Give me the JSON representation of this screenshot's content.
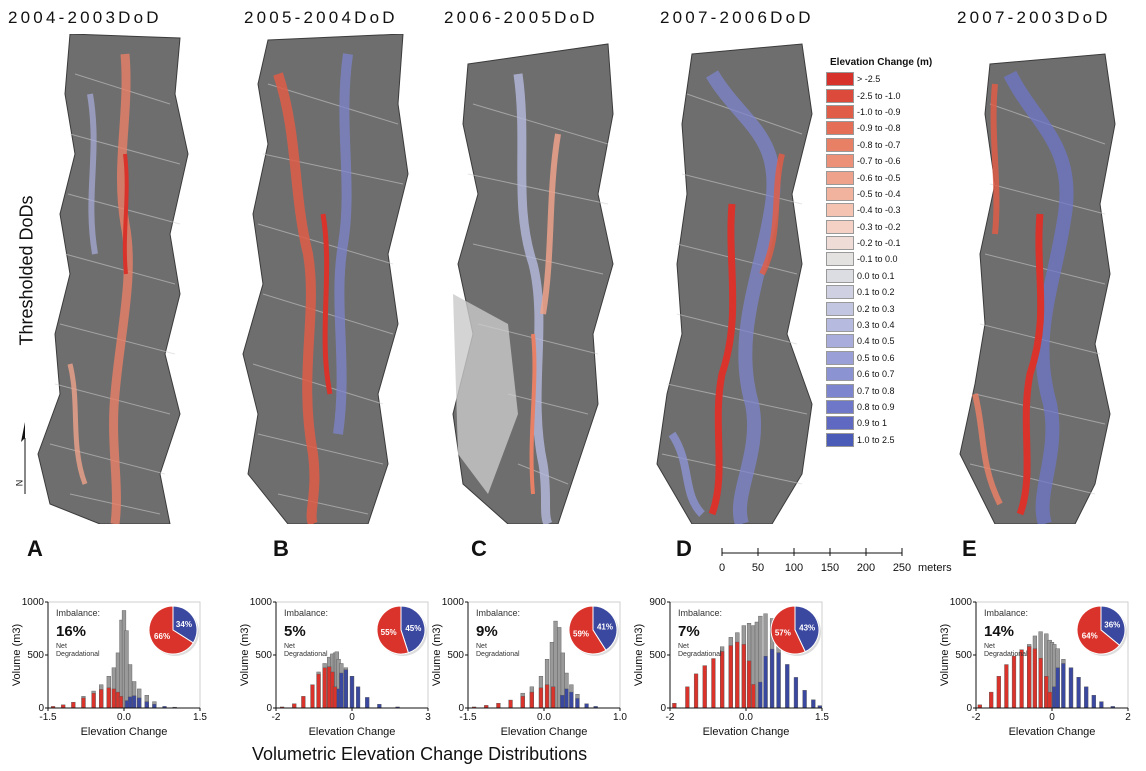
{
  "figure": {
    "row_label": "Thresholded DoDs",
    "bottom_caption": "Volumetric Elevation Change Distributions",
    "north_label": "N"
  },
  "colors": {
    "hillshade": "#6e6e6e",
    "erosion": "#d9332b",
    "deposition": "#3b48a0",
    "hist_gray": "#9a9a9a"
  },
  "panels": [
    {
      "letter": "A",
      "title": "2004-2003DoD"
    },
    {
      "letter": "B",
      "title": "2005-2004DoD"
    },
    {
      "letter": "C",
      "title": "2006-2005DoD"
    },
    {
      "letter": "D",
      "title": "2007-2006DoD"
    },
    {
      "letter": "E",
      "title": "2007-2003DoD"
    }
  ],
  "legend": {
    "title": "Elevation Change (m)",
    "items": [
      {
        "label": "> -2.5",
        "color": "#d7312b"
      },
      {
        "label": "-2.5 to -1.0",
        "color": "#dc4a3c"
      },
      {
        "label": "-1.0 to -0.9",
        "color": "#e05d48"
      },
      {
        "label": "-0.9 to -0.8",
        "color": "#e46f56"
      },
      {
        "label": "-0.8 to -0.7",
        "color": "#e88066"
      },
      {
        "label": "-0.7 to -0.6",
        "color": "#ec9178"
      },
      {
        "label": "-0.6 to -0.5",
        "color": "#efa28b"
      },
      {
        "label": "-0.5 to -0.4",
        "color": "#f2b39e"
      },
      {
        "label": "-0.4 to -0.3",
        "color": "#f4c3b2"
      },
      {
        "label": "-0.3 to -0.2",
        "color": "#f5d1c5"
      },
      {
        "label": "-0.2 to -0.1",
        "color": "#f0dcd6"
      },
      {
        "label": "-0.1 to 0.0",
        "color": "#e4e1e1"
      },
      {
        "label": "0.0 to 0.1",
        "color": "#dcdde3"
      },
      {
        "label": "0.1 to 0.2",
        "color": "#cfd1e2"
      },
      {
        "label": "0.2 to 0.3",
        "color": "#c2c6e0"
      },
      {
        "label": "0.3 to 0.4",
        "color": "#b5bade"
      },
      {
        "label": "0.4 to 0.5",
        "color": "#a8addb"
      },
      {
        "label": "0.5 to 0.6",
        "color": "#9aa0d7"
      },
      {
        "label": "0.6 to 0.7",
        "color": "#8c93d3"
      },
      {
        "label": "0.7 to 0.8",
        "color": "#7d85ce"
      },
      {
        "label": "0.8 to 0.9",
        "color": "#6e77c8"
      },
      {
        "label": "0.9 to 1",
        "color": "#5f69c1"
      },
      {
        "label": "1.0 to 2.5",
        "color": "#4b5cb8"
      }
    ]
  },
  "scale_bar": {
    "ticks": [
      "0",
      "50",
      "100",
      "150",
      "200",
      "250"
    ],
    "unit": "meters"
  },
  "chart_data": [
    {
      "type": "bar",
      "panel": "A",
      "xlabel": "Elevation Change",
      "ylabel": "Volume (m3)",
      "xlim": [
        -1.5,
        1.5
      ],
      "ylim": [
        0,
        1000
      ],
      "xticks": [
        "-1.5",
        "0.0",
        "1.5"
      ],
      "yticks": [
        "0",
        "500",
        "1000"
      ],
      "imbalance_label": "Imbalance:",
      "imbalance": "16%",
      "net": "Net\nDegradational",
      "pie": [
        {
          "name": "erosion",
          "percent": 66,
          "label": "66%"
        },
        {
          "name": "deposition",
          "percent": 34,
          "label": "34%"
        }
      ],
      "erosion": [
        [
          -1.4,
          15
        ],
        [
          -1.2,
          30
        ],
        [
          -1.0,
          55
        ],
        [
          -0.8,
          95
        ],
        [
          -0.6,
          140
        ],
        [
          -0.45,
          175
        ],
        [
          -0.3,
          190
        ],
        [
          -0.2,
          180
        ],
        [
          -0.12,
          150
        ],
        [
          -0.06,
          110
        ]
      ],
      "deposition": [
        [
          0.06,
          70
        ],
        [
          0.12,
          105
        ],
        [
          0.2,
          115
        ],
        [
          0.3,
          95
        ],
        [
          0.45,
          60
        ],
        [
          0.6,
          35
        ],
        [
          0.8,
          15
        ],
        [
          1.0,
          8
        ]
      ],
      "gray": [
        [
          -0.8,
          110
        ],
        [
          -0.6,
          160
        ],
        [
          -0.45,
          220
        ],
        [
          -0.3,
          300
        ],
        [
          -0.2,
          380
        ],
        [
          -0.12,
          520
        ],
        [
          -0.05,
          830
        ],
        [
          0.0,
          920
        ],
        [
          0.05,
          730
        ],
        [
          0.12,
          410
        ],
        [
          0.2,
          250
        ],
        [
          0.3,
          180
        ],
        [
          0.45,
          120
        ],
        [
          0.6,
          60
        ]
      ]
    },
    {
      "type": "bar",
      "panel": "B",
      "xlabel": "Elevation Change",
      "ylabel": "Volume (m3)",
      "xlim": [
        -2,
        3
      ],
      "ylim": [
        0,
        1000
      ],
      "xticks": [
        "-2",
        "0",
        "3"
      ],
      "yticks": [
        "0",
        "500",
        "1000"
      ],
      "imbalance_label": "Imbalance:",
      "imbalance": "5%",
      "net": "Net\nDegradational",
      "pie": [
        {
          "name": "erosion",
          "percent": 55,
          "label": "55%"
        },
        {
          "name": "deposition",
          "percent": 45,
          "label": "45%"
        }
      ],
      "erosion": [
        [
          -1.8,
          10
        ],
        [
          -1.4,
          40
        ],
        [
          -1.1,
          110
        ],
        [
          -0.8,
          220
        ],
        [
          -0.6,
          320
        ],
        [
          -0.4,
          380
        ],
        [
          -0.25,
          390
        ],
        [
          -0.15,
          340
        ],
        [
          -0.06,
          200
        ]
      ],
      "deposition": [
        [
          0.06,
          180
        ],
        [
          0.15,
          330
        ],
        [
          0.3,
          360
        ],
        [
          0.5,
          300
        ],
        [
          0.7,
          200
        ],
        [
          1.0,
          100
        ],
        [
          1.4,
          35
        ],
        [
          2.0,
          10
        ]
      ],
      "gray": [
        [
          -0.6,
          340
        ],
        [
          -0.4,
          420
        ],
        [
          -0.25,
          480
        ],
        [
          -0.15,
          510
        ],
        [
          -0.06,
          520
        ],
        [
          0.0,
          530
        ],
        [
          0.06,
          460
        ],
        [
          0.15,
          420
        ],
        [
          0.3,
          380
        ],
        [
          0.5,
          300
        ]
      ]
    },
    {
      "type": "bar",
      "panel": "C",
      "xlabel": "Elevation Change",
      "ylabel": "Volume (m3)",
      "xlim": [
        -1.5,
        1.0
      ],
      "ylim": [
        0,
        1000
      ],
      "xticks": [
        "-1.5",
        "0.0",
        "1.0"
      ],
      "yticks": [
        "0",
        "500",
        "1000"
      ],
      "imbalance_label": "Imbalance:",
      "imbalance": "9%",
      "net": "Net\nDegradational",
      "pie": [
        {
          "name": "erosion",
          "percent": 59,
          "label": "59%"
        },
        {
          "name": "deposition",
          "percent": 41,
          "label": "41%"
        }
      ],
      "erosion": [
        [
          -1.4,
          10
        ],
        [
          -1.2,
          25
        ],
        [
          -1.0,
          45
        ],
        [
          -0.8,
          75
        ],
        [
          -0.6,
          110
        ],
        [
          -0.45,
          150
        ],
        [
          -0.3,
          190
        ],
        [
          -0.2,
          220
        ],
        [
          -0.1,
          200
        ]
      ],
      "deposition": [
        [
          0.05,
          120
        ],
        [
          0.12,
          180
        ],
        [
          0.2,
          150
        ],
        [
          0.3,
          90
        ],
        [
          0.45,
          40
        ],
        [
          0.6,
          15
        ]
      ],
      "gray": [
        [
          -0.6,
          140
        ],
        [
          -0.45,
          200
        ],
        [
          -0.3,
          300
        ],
        [
          -0.2,
          460
        ],
        [
          -0.12,
          620
        ],
        [
          -0.06,
          820
        ],
        [
          0.0,
          760
        ],
        [
          0.06,
          520
        ],
        [
          0.12,
          330
        ],
        [
          0.2,
          220
        ],
        [
          0.3,
          130
        ]
      ]
    },
    {
      "type": "bar",
      "panel": "D",
      "xlabel": "Elevation Change",
      "ylabel": "Volume (m3)",
      "xlim": [
        -2,
        1.5
      ],
      "ylim": [
        0,
        900
      ],
      "xticks": [
        "-2",
        "0.0",
        "1.5"
      ],
      "yticks": [
        "0",
        "500",
        "900"
      ],
      "imbalance_label": "Imbalance:",
      "imbalance": "7%",
      "net": "Net\nDegradational",
      "pie": [
        {
          "name": "erosion",
          "percent": 57,
          "label": "57%"
        },
        {
          "name": "deposition",
          "percent": 43,
          "label": "43%"
        }
      ],
      "erosion": [
        [
          -1.9,
          40
        ],
        [
          -1.6,
          180
        ],
        [
          -1.4,
          290
        ],
        [
          -1.2,
          360
        ],
        [
          -1.0,
          420
        ],
        [
          -0.8,
          480
        ],
        [
          -0.6,
          530
        ],
        [
          -0.45,
          560
        ],
        [
          -0.3,
          540
        ],
        [
          -0.18,
          400
        ],
        [
          -0.08,
          200
        ]
      ],
      "deposition": [
        [
          0.08,
          220
        ],
        [
          0.2,
          440
        ],
        [
          0.35,
          500
        ],
        [
          0.5,
          470
        ],
        [
          0.7,
          370
        ],
        [
          0.9,
          260
        ],
        [
          1.1,
          150
        ],
        [
          1.3,
          70
        ],
        [
          1.45,
          20
        ]
      ],
      "gray": [
        [
          -0.8,
          520
        ],
        [
          -0.6,
          600
        ],
        [
          -0.45,
          640
        ],
        [
          -0.3,
          700
        ],
        [
          -0.18,
          720
        ],
        [
          -0.08,
          700
        ],
        [
          0.0,
          730
        ],
        [
          0.08,
          780
        ],
        [
          0.2,
          800
        ],
        [
          0.35,
          760
        ],
        [
          0.5,
          660
        ]
      ]
    },
    {
      "type": "bar",
      "panel": "E",
      "xlabel": "Elevation Change",
      "ylabel": "Volume (m3)",
      "xlim": [
        -2,
        2
      ],
      "ylim": [
        0,
        1000
      ],
      "xticks": [
        "-2",
        "0",
        "2"
      ],
      "yticks": [
        "0",
        "500",
        "1000"
      ],
      "imbalance_label": "Imbalance:",
      "imbalance": "14%",
      "net": "Net\nDegradational",
      "pie": [
        {
          "name": "erosion",
          "percent": 64,
          "label": "64%"
        },
        {
          "name": "deposition",
          "percent": 36,
          "label": "36%"
        }
      ],
      "erosion": [
        [
          -1.9,
          30
        ],
        [
          -1.6,
          150
        ],
        [
          -1.4,
          300
        ],
        [
          -1.2,
          410
        ],
        [
          -1.0,
          490
        ],
        [
          -0.8,
          550
        ],
        [
          -0.6,
          580
        ],
        [
          -0.45,
          560
        ],
        [
          -0.3,
          470
        ],
        [
          -0.15,
          300
        ],
        [
          -0.06,
          150
        ]
      ],
      "deposition": [
        [
          0.06,
          200
        ],
        [
          0.15,
          380
        ],
        [
          0.3,
          420
        ],
        [
          0.5,
          380
        ],
        [
          0.7,
          290
        ],
        [
          0.9,
          200
        ],
        [
          1.1,
          120
        ],
        [
          1.3,
          60
        ],
        [
          1.6,
          15
        ]
      ],
      "gray": [
        [
          -0.6,
          600
        ],
        [
          -0.45,
          680
        ],
        [
          -0.3,
          720
        ],
        [
          -0.15,
          700
        ],
        [
          -0.06,
          640
        ],
        [
          0.0,
          620
        ],
        [
          0.06,
          600
        ],
        [
          0.15,
          560
        ],
        [
          0.3,
          460
        ],
        [
          0.5,
          380
        ]
      ]
    }
  ]
}
